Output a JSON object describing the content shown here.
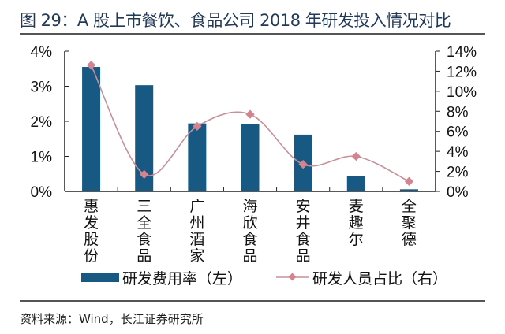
{
  "title": "图 29：A 股上市餐饮、食品公司 2018 年研发投入情况对比",
  "source": "资料来源：Wind，长江证券研究所",
  "colors": {
    "bar": "#175983",
    "line": "#c7909a",
    "marker": "#d4848f",
    "title": "#233a57"
  },
  "chart_data": {
    "type": "bar+line",
    "title": "",
    "categories": [
      "惠发股份",
      "三全食品",
      "广州酒家",
      "海欣食品",
      "安井食品",
      "麦趣尔",
      "全聚德"
    ],
    "series": [
      {
        "name": "研发费用率（左）",
        "type": "bar",
        "axis": "left",
        "values": [
          3.55,
          3.03,
          1.94,
          1.91,
          1.62,
          0.43,
          0.06
        ]
      },
      {
        "name": "研发人员占比（右）",
        "type": "line",
        "axis": "right",
        "smooth": true,
        "values": [
          12.6,
          1.7,
          6.5,
          7.7,
          2.7,
          3.5,
          1.0
        ]
      }
    ],
    "left_axis": {
      "ylim": [
        0,
        4
      ],
      "ticks": [
        "0%",
        "1%",
        "2%",
        "3%",
        "4%"
      ]
    },
    "right_axis": {
      "ylim": [
        0,
        14
      ],
      "ticks": [
        "0%",
        "2%",
        "4%",
        "6%",
        "8%",
        "10%",
        "12%",
        "14%"
      ]
    },
    "grid": false,
    "legend": "bottom"
  }
}
